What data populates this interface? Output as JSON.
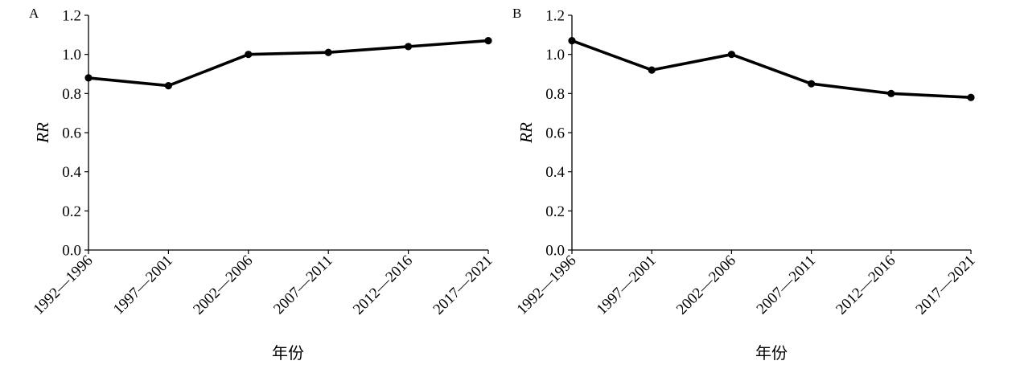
{
  "chart_data": [
    {
      "type": "line",
      "panel_label": "A",
      "categories": [
        "1992—1996",
        "1997—2001",
        "2002—2006",
        "2007—2011",
        "2012—2016",
        "2017—2021"
      ],
      "series": [
        {
          "values": [
            0.88,
            0.84,
            1.0,
            1.01,
            1.04,
            1.07
          ]
        }
      ],
      "yticks": [
        "0.0",
        "0.2",
        "0.4",
        "0.6",
        "0.8",
        "1.0",
        "1.2"
      ],
      "ylim": [
        0,
        1.2
      ],
      "xlabel": "年份",
      "ylabel": "RR",
      "grid": false,
      "legend": "none",
      "line_color": "#000000"
    },
    {
      "type": "line",
      "panel_label": "B",
      "categories": [
        "1992—1996",
        "1997—2001",
        "2002—2006",
        "2007—2011",
        "2012—2016",
        "2017—2021"
      ],
      "series": [
        {
          "values": [
            1.07,
            0.92,
            1.0,
            0.85,
            0.8,
            0.78
          ]
        }
      ],
      "yticks": [
        "0.0",
        "0.2",
        "0.4",
        "0.6",
        "0.8",
        "1.0",
        "1.2"
      ],
      "ylim": [
        0,
        1.2
      ],
      "xlabel": "年份",
      "ylabel": "RR",
      "grid": false,
      "legend": "none",
      "line_color": "#000000"
    }
  ]
}
